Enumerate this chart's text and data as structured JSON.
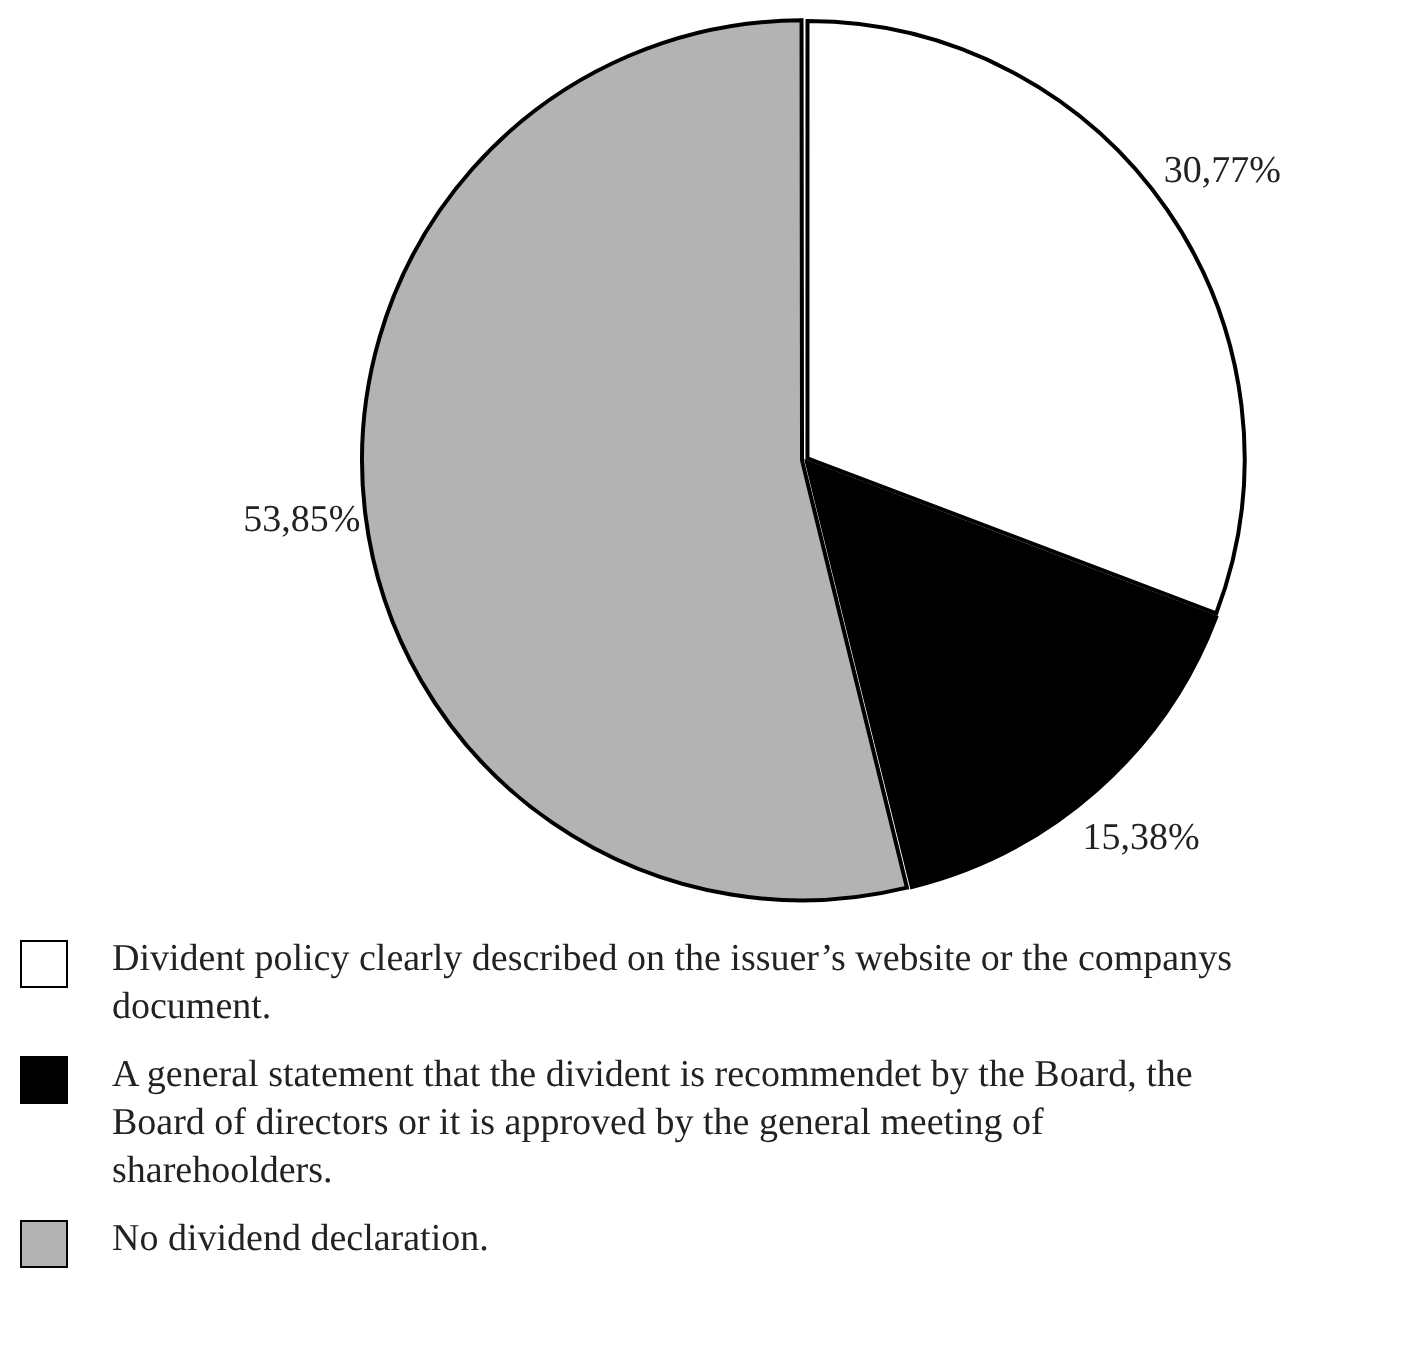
{
  "chart_data": {
    "type": "pie",
    "categories": [
      "Divident policy clearly described on the issuer’s website or the companys document.",
      "A general statement that the divident is recommendet by the Board, the Board of directors or it is approved by the general meeting of sharehoolders.",
      "No dividend declaration."
    ],
    "values": [
      30.77,
      15.38,
      53.85
    ],
    "colors": [
      "#ffffff",
      "#000000",
      "#b3b3b3"
    ],
    "value_labels": [
      "30,77%",
      "15,38%",
      "53,85%"
    ],
    "legend": "bottom"
  }
}
